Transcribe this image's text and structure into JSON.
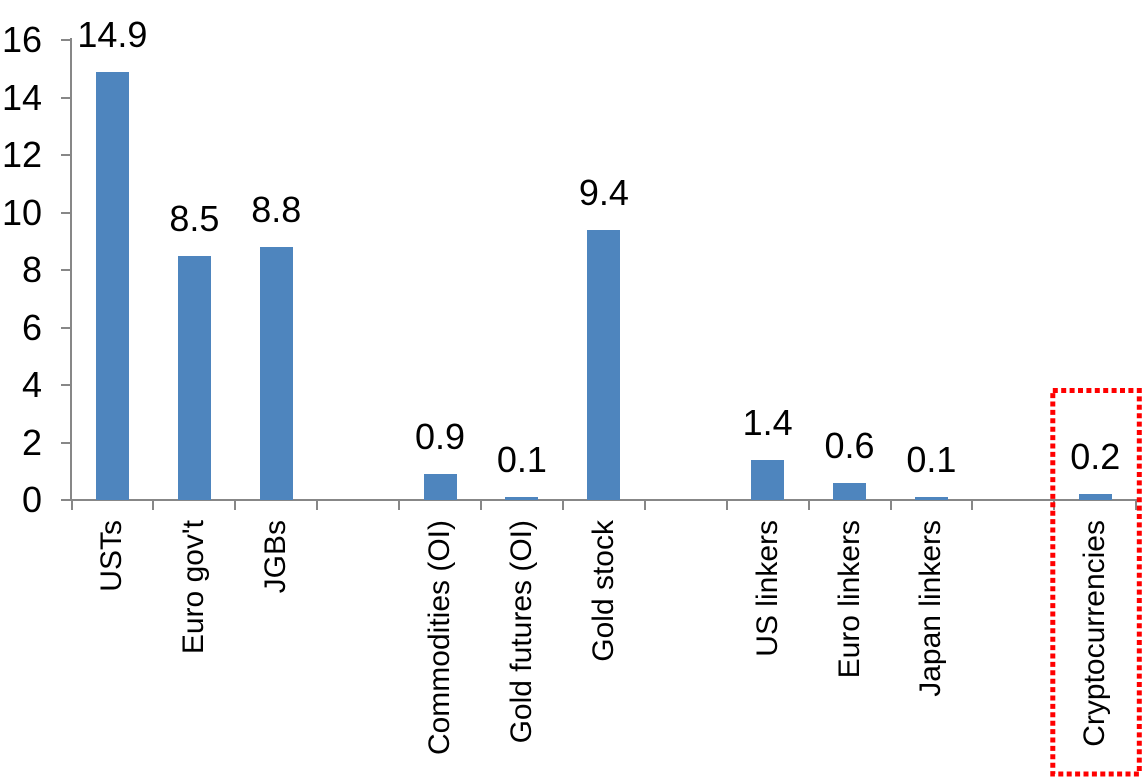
{
  "chart_data": {
    "type": "bar",
    "title": "",
    "xlabel": "",
    "ylabel": "",
    "categories": [
      "USTs",
      "Euro gov't",
      "JGBs",
      "",
      "Commodities (OI)",
      "Gold futures (OI)",
      "Gold stock",
      "",
      "US linkers",
      "Euro linkers",
      "Japan linkers",
      "",
      "Cryptocurrencies"
    ],
    "values": [
      14.9,
      8.5,
      8.8,
      null,
      0.9,
      0.1,
      9.4,
      null,
      1.4,
      0.6,
      0.1,
      null,
      0.2
    ],
    "value_labels": [
      "14.9",
      "8.5",
      "8.8",
      null,
      "0.9",
      "0.1",
      "9.4",
      null,
      "1.4",
      "0.6",
      "0.1",
      null,
      "0.2"
    ],
    "yticks": [
      "0",
      "2",
      "4",
      "6",
      "8",
      "10",
      "12",
      "14",
      "16"
    ],
    "ylim": [
      0,
      16
    ],
    "grid": false,
    "legend": null,
    "colors": {
      "bar": "#4E85BE",
      "axis": "#878787",
      "text": "#000000",
      "highlight_box": "#FF0000"
    },
    "highlight": {
      "category": "Cryptocurrencies",
      "index": 12,
      "box_style": "dotted"
    }
  }
}
